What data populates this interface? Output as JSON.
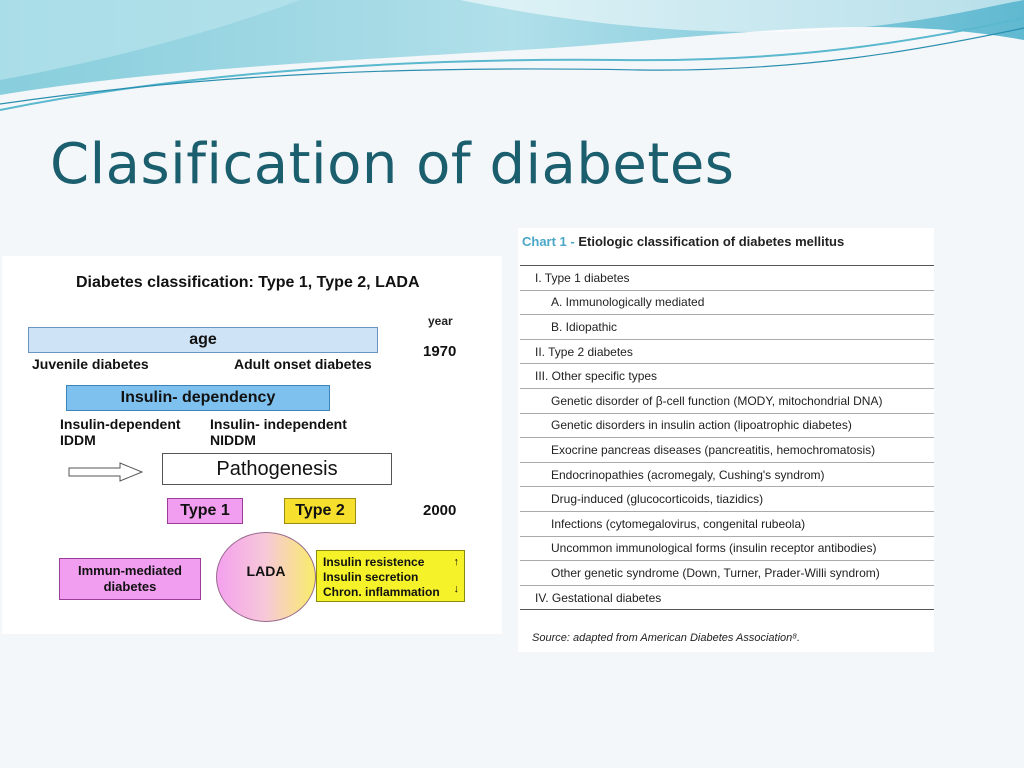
{
  "slide": {
    "title": "Clasification of diabetes"
  },
  "colors": {
    "title": "#1b5e6e",
    "wave": "#5ab8cf",
    "accent": "#4aa7c7"
  },
  "left_panel": {
    "title": "Diabetes classification: Type 1, Type 2, LADA",
    "year_label": "year",
    "year_1970": "1970",
    "year_2000": "2000",
    "age_label": "age",
    "juvenile": "Juvenile diabetes",
    "adult_onset": "Adult onset diabetes",
    "insulin_dependency": "Insulin- dependency",
    "insulin_dependent": "Insulin-dependent",
    "iddm": "IDDM",
    "insulin_independent": "Insulin- independent",
    "niddm": "NIDDM",
    "pathogenesis": "Pathogenesis",
    "type1": "Type 1",
    "type2": "Type 2",
    "immun_line1": "Immun-mediated",
    "immun_line2": "diabetes",
    "lada": "LADA",
    "factor1": "Insulin resistence",
    "factor2": "Insulin secretion",
    "factor3": "Chron. inflammation",
    "arrow_up": "↑",
    "arrow_down": "↓"
  },
  "etiologic_chart": {
    "title_prefix": "Chart 1 -",
    "title": "Etiologic classification of diabetes mellitus",
    "rows": [
      {
        "level": 0,
        "text": "I. Type 1 diabetes"
      },
      {
        "level": 1,
        "text": "A. Immunologically mediated"
      },
      {
        "level": 1,
        "text": "B. Idiopathic"
      },
      {
        "level": 0,
        "text": "II. Type 2 diabetes"
      },
      {
        "level": 0,
        "text": "III. Other specific types"
      },
      {
        "level": 1,
        "text": "Genetic disorder of β-cell function (MODY, mitochondrial DNA)"
      },
      {
        "level": 1,
        "text": "Genetic disorders in insulin action (lipoatrophic diabetes)"
      },
      {
        "level": 1,
        "text": "Exocrine pancreas diseases (pancreatitis, hemochromatosis)"
      },
      {
        "level": 1,
        "text": "Endocrinopathies (acromegaly, Cushing's syndrom)"
      },
      {
        "level": 1,
        "text": "Drug-induced (glucocorticoids, tiazidics)"
      },
      {
        "level": 1,
        "text": "Infections (cytomegalovirus, congenital rubeola)"
      },
      {
        "level": 1,
        "text": "Uncommon immunological forms (insulin receptor antibodies)"
      },
      {
        "level": 1,
        "text": "Other genetic syndrome (Down, Turner, Prader-Willi syndrom)"
      },
      {
        "level": 0,
        "text": "IV. Gestational diabetes"
      }
    ],
    "source": "Source: adapted from American Diabetes Association⁸."
  }
}
